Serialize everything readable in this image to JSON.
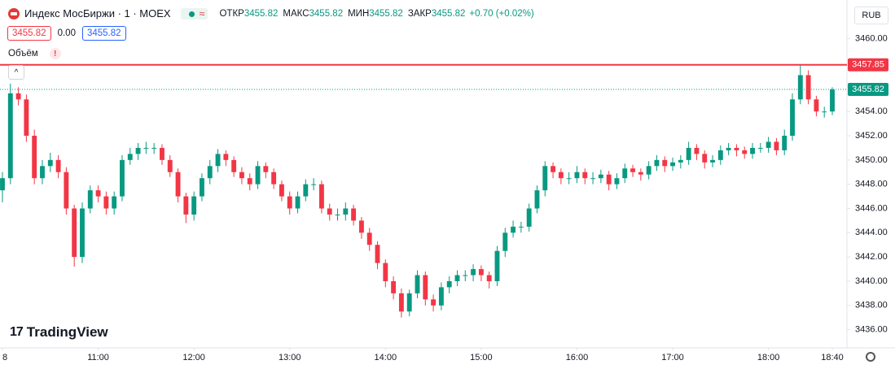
{
  "header": {
    "symbol": "Индекс МосБиржи · 1 · MOEX",
    "ohlc": [
      {
        "label": "ОТКР",
        "value": 3455.82
      },
      {
        "label": "МАКС",
        "value": 3455.82
      },
      {
        "label": "МИН",
        "value": 3455.82
      },
      {
        "label": "ЗАКР",
        "value": 3455.82
      }
    ],
    "change": "+0.70 (+0.02%)",
    "bid": 3455.82,
    "spread": "0.00",
    "ask": 3455.82,
    "volume_label": "Объём",
    "currency": "RUB",
    "brand": "TradingView"
  },
  "chart_data": {
    "type": "candlestick",
    "up_color": "#089981",
    "down_color": "#f23645",
    "ylim": [
      3434.5,
      3463.2
    ],
    "yticks": [
      {
        "value": 3436,
        "label": "3436.00"
      },
      {
        "value": 3438,
        "label": "3438.00"
      },
      {
        "value": 3440,
        "label": "3440.00"
      },
      {
        "value": 3442,
        "label": "3442.00"
      },
      {
        "value": 3444,
        "label": "3444.00"
      },
      {
        "value": 3446,
        "label": "3446.00"
      },
      {
        "value": 3448,
        "label": "3448.00"
      },
      {
        "value": 3450,
        "label": "3450.00"
      },
      {
        "value": 3452,
        "label": "3452.00"
      },
      {
        "value": 3454,
        "label": "3454.00"
      },
      {
        "value": 3456,
        "label": "3456.00"
      },
      {
        "value": 3458,
        "label": "3458.00"
      },
      {
        "value": 3460,
        "label": "3460.00"
      }
    ],
    "xlim": [
      0,
      104
    ],
    "xticks": [
      {
        "value": 0,
        "label": "8"
      },
      {
        "value": 12,
        "label": "11:00"
      },
      {
        "value": 24,
        "label": "12:00"
      },
      {
        "value": 36,
        "label": "13:00"
      },
      {
        "value": 48,
        "label": "14:00"
      },
      {
        "value": 60,
        "label": "15:00"
      },
      {
        "value": 72,
        "label": "16:00"
      },
      {
        "value": 84,
        "label": "17:00"
      },
      {
        "value": 96,
        "label": "18:00"
      },
      {
        "value": 104,
        "label": "18:40"
      }
    ],
    "grid": false,
    "high_line": 3457.85,
    "high_line_color": "#f23645",
    "last_price": 3455.82,
    "last_price_color": "#089981",
    "open": [
      3447.5,
      3448.5,
      3455.5,
      3455,
      3452,
      3448.5,
      3449.5,
      3450,
      3449,
      3446,
      3442,
      3446,
      3447.5,
      3447,
      3446,
      3447,
      3450,
      3450.5,
      3451,
      3451,
      3451,
      3450,
      3449,
      3447,
      3445.5,
      3447,
      3448.5,
      3449.5,
      3450.5,
      3450,
      3449,
      3448.5,
      3448,
      3449.5,
      3449,
      3448,
      3447,
      3446,
      3447,
      3448,
      3448,
      3446,
      3445.5,
      3445.5,
      3446,
      3445,
      3444,
      3443,
      3441.5,
      3440,
      3439,
      3437.5,
      3439,
      3440.5,
      3438.5,
      3438,
      3439.5,
      3440,
      3440.5,
      3440.5,
      3441,
      3440.5,
      3440,
      3442.5,
      3444,
      3444.5,
      3444.5,
      3446,
      3447.5,
      3449.5,
      3449,
      3448.5,
      3448.5,
      3449,
      3448.5,
      3448.5,
      3448.8,
      3448,
      3448.5,
      3449.3,
      3449,
      3448.8,
      3449.5,
      3450,
      3449.5,
      3449.8,
      3450,
      3451,
      3450.5,
      3449.8,
      3450,
      3450.8,
      3451,
      3450.8,
      3450.5,
      3451,
      3451,
      3451.5,
      3450.8,
      3452,
      3455,
      3457,
      3455,
      3454,
      3454
    ],
    "high": [
      3449,
      3456.3,
      3456,
      3455.4,
      3452.5,
      3450,
      3450.6,
      3450.4,
      3449.4,
      3446.3,
      3446.5,
      3447.9,
      3447.9,
      3447.4,
      3447.4,
      3450.4,
      3451,
      3451.4,
      3451.5,
      3451.4,
      3451.3,
      3450.4,
      3449.3,
      3447.3,
      3447.4,
      3448.9,
      3450,
      3450.9,
      3450.8,
      3450.3,
      3449.4,
      3448.9,
      3449.9,
      3449.8,
      3449.3,
      3448.3,
      3447.4,
      3447.4,
      3448.4,
      3448.5,
      3448.3,
      3446.4,
      3446,
      3446.5,
      3446.3,
      3445.3,
      3444.4,
      3443.3,
      3441.8,
      3440.4,
      3439.4,
      3439.3,
      3440.9,
      3440.8,
      3438.9,
      3439.9,
      3440.4,
      3440.9,
      3440.9,
      3441.4,
      3441.3,
      3440.8,
      3442.9,
      3444.4,
      3445,
      3444.9,
      3446.4,
      3447.9,
      3449.9,
      3449.8,
      3449.3,
      3449,
      3449.5,
      3449.3,
      3449,
      3449.2,
      3449.1,
      3448.9,
      3449.7,
      3449.6,
      3449.3,
      3449.9,
      3450.4,
      3450.3,
      3450.2,
      3450.4,
      3451.5,
      3451.3,
      3450.8,
      3450.4,
      3451.2,
      3451.4,
      3451.3,
      3451.1,
      3451.4,
      3451.4,
      3451.9,
      3451.8,
      3452.5,
      3455.5,
      3457.85,
      3457.4,
      3455.3,
      3454.4,
      3456
    ],
    "low": [
      3446.5,
      3448,
      3454.5,
      3451.5,
      3448,
      3448,
      3449,
      3448.5,
      3445.5,
      3441.2,
      3441.5,
      3445.6,
      3446.5,
      3445.5,
      3445.5,
      3446.6,
      3449.6,
      3450,
      3450.5,
      3450.5,
      3449.6,
      3448.6,
      3446.5,
      3444.8,
      3445,
      3446.6,
      3448,
      3449,
      3449.5,
      3448.6,
      3448,
      3447.5,
      3447.6,
      3448.5,
      3447.6,
      3446.6,
      3445.5,
      3445.6,
      3446.6,
      3447.5,
      3445.6,
      3445,
      3445,
      3445,
      3444.6,
      3443.5,
      3442.5,
      3441,
      3439.5,
      3438.5,
      3437,
      3437.1,
      3438.6,
      3438,
      3437.5,
      3437.6,
      3439,
      3439.6,
      3440,
      3440,
      3440,
      3439.4,
      3439.6,
      3442,
      3443.6,
      3444,
      3444.1,
      3445.6,
      3447,
      3448.5,
      3448,
      3448,
      3448.1,
      3448,
      3448,
      3448.1,
      3447.5,
      3447.6,
      3448.1,
      3448.6,
      3448.3,
      3448.4,
      3449.1,
      3449,
      3449.1,
      3449.3,
      3449.6,
      3450,
      3449.3,
      3449.4,
      3449.6,
      3450.4,
      3450.3,
      3450.1,
      3450.1,
      3450.6,
      3450.6,
      3450.4,
      3450.4,
      3451.6,
      3454.6,
      3454.6,
      3453.6,
      3453.5,
      3453.7
    ],
    "close": [
      3448.5,
      3455.5,
      3455,
      3452,
      3448.5,
      3449.5,
      3450,
      3449,
      3446,
      3442,
      3446,
      3447.5,
      3447,
      3446,
      3447,
      3450,
      3450.5,
      3451,
      3451,
      3451,
      3450,
      3449,
      3447,
      3445.5,
      3447,
      3448.5,
      3449.5,
      3450.5,
      3450,
      3449,
      3448.5,
      3448,
      3449.5,
      3449,
      3448,
      3447,
      3446,
      3447,
      3448,
      3448,
      3446,
      3445.5,
      3445.5,
      3446,
      3445,
      3444,
      3443,
      3441.5,
      3440,
      3439,
      3437.5,
      3439,
      3440.5,
      3438.5,
      3438,
      3439.5,
      3440,
      3440.5,
      3440.5,
      3441,
      3440.5,
      3440,
      3442.5,
      3444,
      3444.5,
      3444.5,
      3446,
      3447.5,
      3449.5,
      3449,
      3448.5,
      3448.5,
      3449,
      3448.5,
      3448.5,
      3448.8,
      3448,
      3448.5,
      3449.3,
      3449,
      3448.8,
      3449.5,
      3450,
      3449.5,
      3449.8,
      3450,
      3451,
      3450.5,
      3449.8,
      3450,
      3450.8,
      3451,
      3450.8,
      3450.5,
      3451,
      3451,
      3451.5,
      3450.8,
      3452,
      3455,
      3457,
      3455,
      3454,
      3454,
      3455.82
    ]
  }
}
